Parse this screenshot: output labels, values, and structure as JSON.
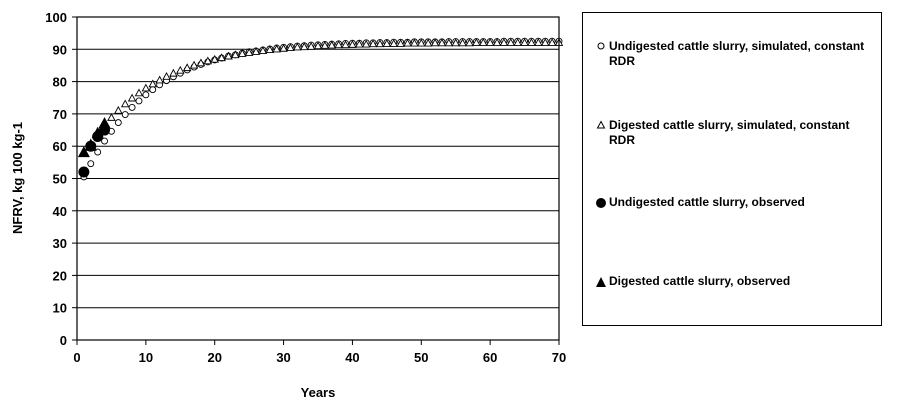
{
  "chart_data": {
    "type": "scatter",
    "title": "",
    "xlabel": "Years",
    "ylabel": "NFRV, kg 100 kg-1",
    "xlim": [
      0,
      70
    ],
    "ylim": [
      0,
      100
    ],
    "x_ticks": [
      "0",
      "10",
      "20",
      "30",
      "40",
      "50",
      "60",
      "70"
    ],
    "y_ticks": [
      "0",
      "10",
      "20",
      "30",
      "40",
      "50",
      "60",
      "70",
      "80",
      "90",
      "100"
    ],
    "grid": "horizontal",
    "legend_position": "right",
    "series": [
      {
        "name": "Undigested cattle slurry, simulated, constant RDR",
        "marker": "open-circle",
        "x": [
          1,
          2,
          3,
          4,
          5,
          6,
          7,
          8,
          9,
          10,
          11,
          12,
          13,
          14,
          15,
          16,
          17,
          18,
          19,
          20,
          21,
          22,
          23,
          24,
          25,
          26,
          27,
          28,
          29,
          30,
          31,
          32,
          33,
          34,
          35,
          36,
          37,
          38,
          39,
          40,
          41,
          42,
          43,
          44,
          45,
          46,
          47,
          48,
          49,
          50,
          51,
          52,
          53,
          54,
          55,
          56,
          57,
          58,
          59,
          60,
          61,
          62,
          63,
          64,
          65,
          66,
          67,
          68,
          69,
          70
        ],
        "y": [
          50.5,
          54.6,
          58.2,
          61.6,
          64.6,
          67.3,
          69.8,
          72.0,
          74.0,
          75.9,
          77.5,
          79.0,
          80.3,
          81.5,
          82.6,
          83.6,
          84.5,
          85.3,
          86.1,
          86.7,
          87.3,
          87.9,
          88.3,
          88.8,
          89.2,
          89.5,
          89.8,
          90.1,
          90.4,
          90.6,
          90.8,
          91.0,
          91.1,
          91.3,
          91.4,
          91.5,
          91.6,
          91.7,
          91.8,
          91.9,
          91.9,
          92.0,
          92.0,
          92.1,
          92.1,
          92.2,
          92.2,
          92.2,
          92.3,
          92.3,
          92.3,
          92.3,
          92.3,
          92.4,
          92.4,
          92.4,
          92.4,
          92.4,
          92.4,
          92.4,
          92.4,
          92.5,
          92.5,
          92.5,
          92.5,
          92.5,
          92.5,
          92.5,
          92.5,
          92.5
        ]
      },
      {
        "name": "Digested cattle slurry, simulated, constant RDR",
        "marker": "open-triangle",
        "x": [
          1,
          2,
          3,
          4,
          5,
          6,
          7,
          8,
          9,
          10,
          11,
          12,
          13,
          14,
          15,
          16,
          17,
          18,
          19,
          20,
          21,
          22,
          23,
          24,
          25,
          26,
          27,
          28,
          29,
          30,
          31,
          32,
          33,
          34,
          35,
          36,
          37,
          38,
          39,
          40,
          41,
          42,
          43,
          44,
          45,
          46,
          47,
          48,
          49,
          50,
          51,
          52,
          53,
          54,
          55,
          56,
          57,
          58,
          59,
          60,
          61,
          62,
          63,
          64,
          65,
          66,
          67,
          68,
          69,
          70
        ],
        "y": [
          57.7,
          60.9,
          63.8,
          66.4,
          68.8,
          71.0,
          73.0,
          74.8,
          76.4,
          77.9,
          79.2,
          80.4,
          81.5,
          82.5,
          83.4,
          84.2,
          85.0,
          85.7,
          86.3,
          86.8,
          87.3,
          87.8,
          88.2,
          88.6,
          88.9,
          89.2,
          89.5,
          89.8,
          90.0,
          90.2,
          90.4,
          90.6,
          90.7,
          90.8,
          91.0,
          91.1,
          91.2,
          91.3,
          91.3,
          91.4,
          91.5,
          91.5,
          91.6,
          91.6,
          91.7,
          91.7,
          91.7,
          91.8,
          91.8,
          91.8,
          91.8,
          91.9,
          91.9,
          91.9,
          91.9,
          91.9,
          91.9,
          92.0,
          92.0,
          92.0,
          92.0,
          92.0,
          92.0,
          92.0,
          92.0,
          92.0,
          92.0,
          92.0,
          92.0,
          92.0
        ]
      },
      {
        "name": "Undigested cattle slurry, observed",
        "marker": "filled-circle",
        "x": [
          1,
          2,
          3,
          4
        ],
        "y": [
          52,
          60,
          63,
          65
        ]
      },
      {
        "name": "Digested cattle slurry, observed",
        "marker": "filled-triangle",
        "x": [
          1,
          2,
          3,
          4
        ],
        "y": [
          58,
          60,
          64,
          67
        ]
      }
    ]
  }
}
